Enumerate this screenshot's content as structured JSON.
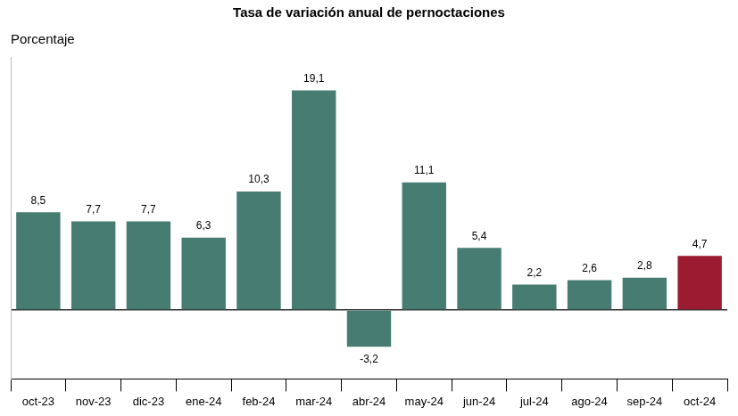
{
  "chart_data": {
    "type": "bar",
    "title": "Tasa de variación anual de pernoctaciones",
    "subtitle": "Porcentaje",
    "categories": [
      "oct-23",
      "nov-23",
      "dic-23",
      "ene-24",
      "feb-24",
      "mar-24",
      "abr-24",
      "may-24",
      "jun-24",
      "jul-24",
      "ago-24",
      "sep-24",
      "oct-24"
    ],
    "values": [
      8.5,
      7.7,
      7.7,
      6.3,
      10.3,
      19.1,
      -3.2,
      11.1,
      5.4,
      2.2,
      2.6,
      2.8,
      4.7
    ],
    "value_labels": [
      "8,5",
      "7,7",
      "7,7",
      "6,3",
      "10,3",
      "19,1",
      "-3,2",
      "11,1",
      "5,4",
      "2,2",
      "2,6",
      "2,8",
      "4,7"
    ],
    "colors": [
      "#467c72",
      "#467c72",
      "#467c72",
      "#467c72",
      "#467c72",
      "#467c72",
      "#467c72",
      "#467c72",
      "#467c72",
      "#467c72",
      "#467c72",
      "#467c72",
      "#9b1b30"
    ],
    "ylim": [
      -6,
      22
    ],
    "yticks": [
      0
    ],
    "grid": true,
    "data_labels": true,
    "tick_labels": "x"
  }
}
